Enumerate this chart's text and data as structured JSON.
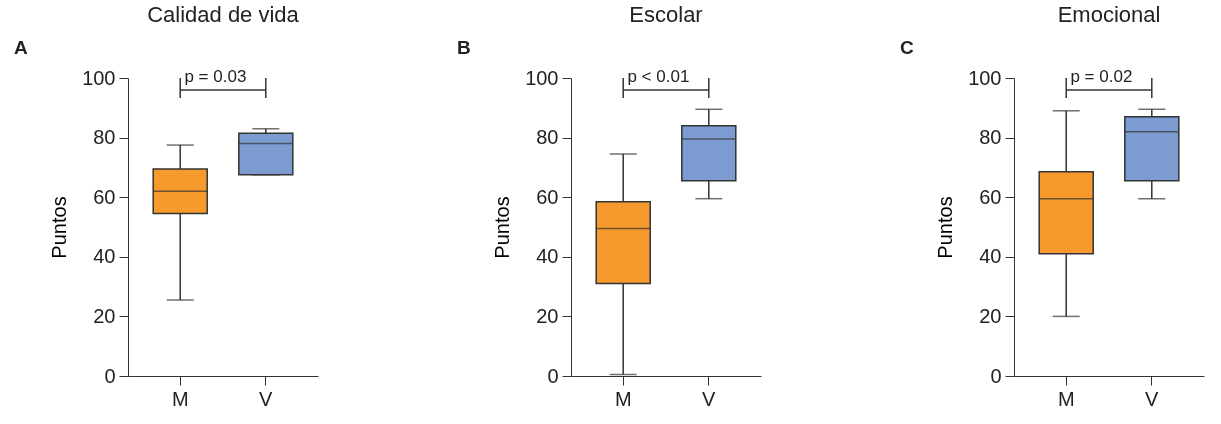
{
  "chart_data": [
    {
      "type": "box",
      "title": "Calidad de vida",
      "ylabel": "Puntos",
      "categories": [
        "M",
        "V"
      ],
      "colors": [
        "#f79a2e",
        "#7b9bd1"
      ],
      "ylim": [
        0,
        100
      ],
      "yticks": [
        0,
        20,
        40,
        60,
        80,
        100
      ],
      "grid": false,
      "annotations": [
        "A",
        "p = 0.03"
      ],
      "boxes": [
        {
          "low": 25.5,
          "q1": 54.5,
          "median": 62,
          "q3": 69.5,
          "high": 77.5
        },
        {
          "low": 67.5,
          "q1": 67.5,
          "median": 78,
          "q3": 81.5,
          "high": 83
        }
      ]
    },
    {
      "type": "box",
      "title": "Escolar",
      "ylabel": "Puntos",
      "categories": [
        "M",
        "V"
      ],
      "colors": [
        "#f79a2e",
        "#7b9bd1"
      ],
      "ylim": [
        0,
        100
      ],
      "yticks": [
        0,
        20,
        40,
        60,
        80,
        100
      ],
      "grid": false,
      "annotations": [
        "B",
        "p < 0.01"
      ],
      "boxes": [
        {
          "low": 0.5,
          "q1": 31,
          "median": 49.5,
          "q3": 58.5,
          "high": 74.5
        },
        {
          "low": 59.5,
          "q1": 65.5,
          "median": 79.5,
          "q3": 84,
          "high": 89.5
        }
      ]
    },
    {
      "type": "box",
      "title": "Emocional",
      "ylabel": "Puntos",
      "categories": [
        "M",
        "V"
      ],
      "colors": [
        "#f79a2e",
        "#7b9bd1"
      ],
      "ylim": [
        0,
        100
      ],
      "yticks": [
        0,
        20,
        40,
        60,
        80,
        100
      ],
      "grid": false,
      "annotations": [
        "C",
        "p = 0.02"
      ],
      "boxes": [
        {
          "low": 20,
          "q1": 41,
          "median": 59.5,
          "q3": 68.5,
          "high": 89
        },
        {
          "low": 59.5,
          "q1": 65.5,
          "median": 82,
          "q3": 87,
          "high": 89.5
        }
      ]
    }
  ]
}
